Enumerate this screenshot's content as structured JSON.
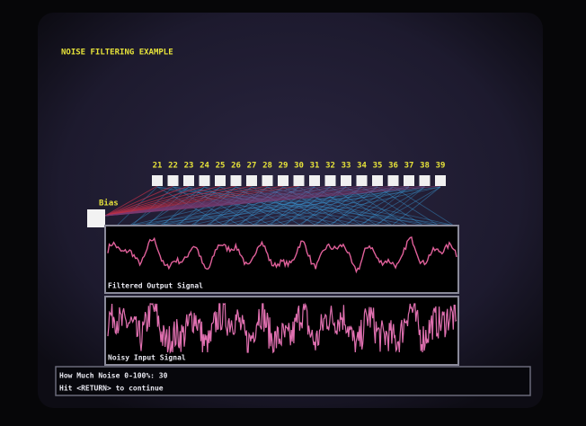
{
  "header": {
    "title": "NOISE FILTERING EXAMPLE"
  },
  "network": {
    "node_labels": [
      "21",
      "22",
      "23",
      "24",
      "25",
      "26",
      "27",
      "28",
      "29",
      "30",
      "31",
      "32",
      "33",
      "34",
      "35",
      "36",
      "37",
      "38",
      "39"
    ],
    "bias_label": "Bias"
  },
  "panels": [
    {
      "label": "Filtered Output Signal"
    },
    {
      "label": "Noisy Input Signal"
    }
  ],
  "prompt": {
    "lines": [
      "How Much Noise 0-100%: 30",
      "Hit <RETURN> to continue"
    ]
  }
}
